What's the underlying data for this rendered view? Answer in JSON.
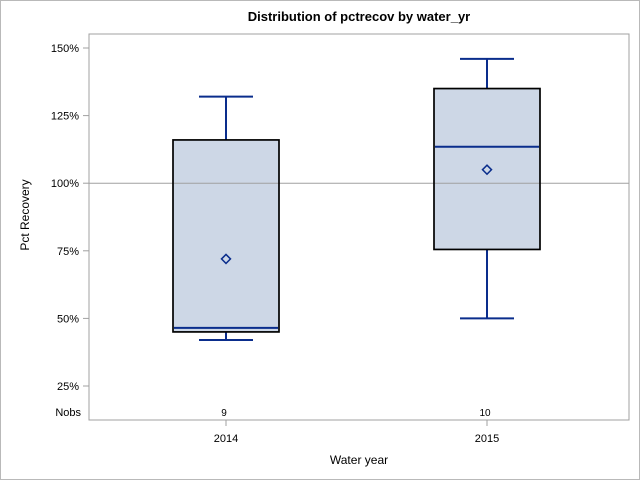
{
  "chart_data": {
    "type": "box",
    "title": "Distribution of pctrecov by water_yr",
    "xlabel": "Water year",
    "ylabel": "Pct Recovery",
    "nobs_row_label": "Nobs",
    "yticks": [
      150,
      125,
      100,
      75,
      50,
      25
    ],
    "ytick_suffix": "%",
    "ylim": [
      25,
      150
    ],
    "refline": 100,
    "categories": [
      "2014",
      "2015"
    ],
    "series": [
      {
        "category": "2014",
        "nobs": 9,
        "whisker_low": 42,
        "q1": 45,
        "median": 46.5,
        "mean": 72,
        "q3": 116,
        "whisker_high": 132
      },
      {
        "category": "2015",
        "nobs": 10,
        "whisker_low": 50,
        "q1": 75.5,
        "median": 113.5,
        "mean": 105,
        "q3": 135,
        "whisker_high": 146
      }
    ],
    "colors": {
      "box_fill": "#cdd7e6",
      "box_border": "#000000",
      "line": "#0a2d8c",
      "axis": "#a0a0a0",
      "refline": "#a0a0a0",
      "text": "#000000"
    }
  }
}
